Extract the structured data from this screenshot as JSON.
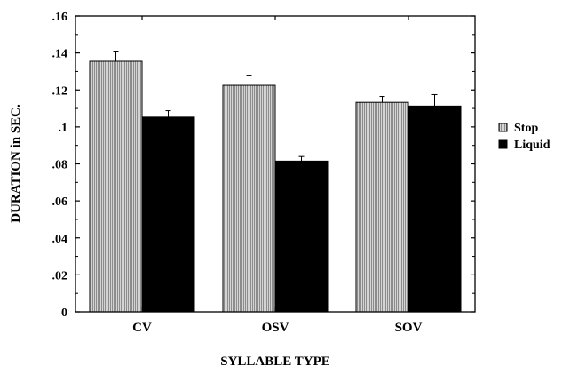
{
  "chart_data": {
    "type": "bar",
    "title": "",
    "xlabel": "SYLLABLE TYPE",
    "ylabel": "DURATION in SEC.",
    "ylim": [
      0,
      0.16
    ],
    "yticks": [
      0,
      0.02,
      0.04,
      0.06,
      0.08,
      0.1,
      0.12,
      0.14,
      0.16
    ],
    "ytick_labels": [
      "0",
      ".02",
      ".04",
      ".06",
      ".08",
      ".1",
      ".12",
      ".14",
      ".16"
    ],
    "categories": [
      "CV",
      "OSV",
      "SOV"
    ],
    "series": [
      {
        "name": "Stop",
        "values": [
          0.1355,
          0.1225,
          0.1133
        ],
        "error": [
          0.0055,
          0.0055,
          0.0032
        ],
        "color": "#c0c0c0",
        "pattern": "vertical-stripes"
      },
      {
        "name": "Liquid",
        "values": [
          0.1053,
          0.0815,
          0.1113
        ],
        "error": [
          0.0035,
          0.0025,
          0.0062
        ],
        "color": "#000000",
        "pattern": "solid"
      }
    ],
    "legend": "right",
    "grid": false
  }
}
